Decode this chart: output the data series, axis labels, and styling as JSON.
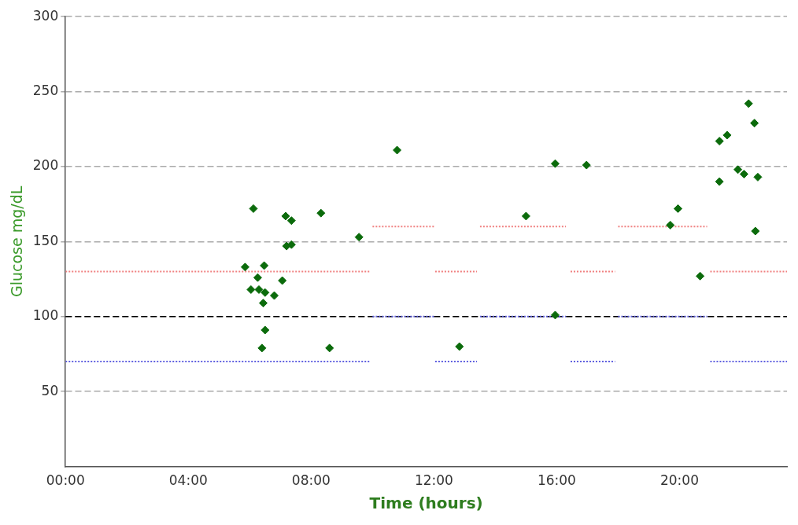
{
  "chart_data": {
    "type": "scatter",
    "xlabel": "Time (hours)",
    "ylabel": "Glucose mg/dL",
    "xlim": [
      0,
      23.5
    ],
    "xticks": [
      {
        "value": 0,
        "label": "00:00"
      },
      {
        "value": 4,
        "label": "04:00"
      },
      {
        "value": 8,
        "label": "08:00"
      },
      {
        "value": 12,
        "label": "12:00"
      },
      {
        "value": 16,
        "label": "16:00"
      },
      {
        "value": 20,
        "label": "20:00"
      }
    ],
    "ylim": [
      0,
      300
    ],
    "yticks": [
      50,
      100,
      150,
      200,
      250,
      300
    ],
    "grid": "y",
    "marker": "diamond",
    "legend": false,
    "ref_lines": [
      {
        "axis": "y",
        "value": 100,
        "color": "#000000",
        "line_style": "dashed"
      }
    ],
    "series": [
      {
        "type": "scatter",
        "color": "#0b6b0b",
        "x": [
          5.85,
          6.12,
          6.04,
          6.3,
          6.47,
          6.26,
          6.5,
          6.8,
          6.44,
          6.5,
          6.4,
          7.06,
          7.17,
          7.36,
          7.2,
          7.36,
          8.32,
          8.6,
          9.56,
          10.8,
          12.83,
          15.0,
          15.95,
          15.95,
          16.97,
          19.7,
          19.95,
          20.67,
          21.3,
          21.3,
          21.55,
          21.9,
          22.1,
          22.25,
          22.44,
          22.55,
          22.47
        ],
        "values": [
          133,
          172,
          118,
          118,
          134,
          126,
          116,
          114,
          109,
          91,
          79,
          124,
          167,
          164,
          147,
          148,
          169,
          79,
          153,
          211,
          80,
          167,
          101,
          202,
          201,
          161,
          172,
          127,
          190,
          217,
          221,
          198,
          195,
          242,
          229,
          193,
          157
        ]
      },
      {
        "type": "line",
        "color": "#f08080",
        "line_style": "dotted",
        "marker": "none",
        "x": [
          0,
          9.9,
          9.95,
          10,
          12,
          12.02,
          12.04,
          13.4,
          13.45,
          13.5,
          16.3,
          16.35,
          16.45,
          17.9,
          17.95,
          18,
          20.9,
          20.95,
          21,
          23.5
        ],
        "values": [
          130,
          130,
          null,
          160,
          160,
          null,
          130,
          130,
          null,
          160,
          160,
          null,
          130,
          130,
          null,
          160,
          160,
          null,
          130,
          130
        ]
      },
      {
        "type": "line",
        "color": "#6060e0",
        "line_style": "dotted",
        "marker": "none",
        "x": [
          0,
          9.9,
          9.95,
          10,
          12,
          12.02,
          12.04,
          13.4,
          13.45,
          13.5,
          16.3,
          16.35,
          16.45,
          17.9,
          17.95,
          18,
          20.9,
          20.95,
          21,
          23.5
        ],
        "values": [
          70,
          70,
          null,
          100,
          100,
          null,
          70,
          70,
          null,
          100,
          100,
          null,
          70,
          70,
          null,
          100,
          100,
          null,
          70,
          70
        ]
      }
    ]
  }
}
